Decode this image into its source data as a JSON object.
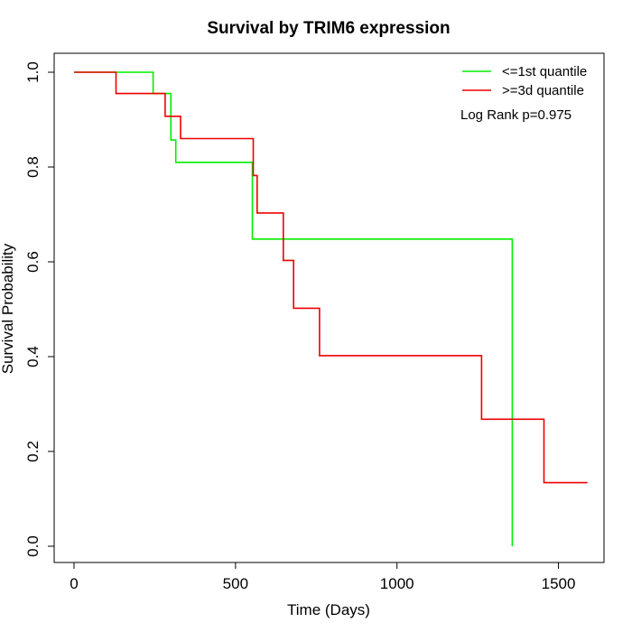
{
  "chart_data": {
    "type": "line",
    "subtype": "kaplan-meier step",
    "title": "Survival by TRIM6 expression",
    "xlabel": "Time (Days)",
    "ylabel": "Survival Probability",
    "xlim": [
      0,
      1650
    ],
    "ylim": [
      0,
      1.0
    ],
    "xticks": [
      0,
      500,
      1000,
      1500
    ],
    "yticks": [
      0.0,
      0.2,
      0.4,
      0.6,
      0.8,
      1.0
    ],
    "xtick_labels": [
      "0",
      "500",
      "1000",
      "1500"
    ],
    "ytick_labels": [
      "0.0",
      "0.2",
      "0.4",
      "0.6",
      "0.8",
      "1.0"
    ],
    "grid": false,
    "legend_position": "top-right",
    "annotation": "Log Rank p=0.975",
    "series": [
      {
        "name": "<=1st quantile",
        "color": "#00ee00",
        "points": [
          [
            0,
            1.0
          ],
          [
            245,
            1.0
          ],
          [
            245,
            0.955
          ],
          [
            300,
            0.955
          ],
          [
            300,
            0.857
          ],
          [
            315,
            0.857
          ],
          [
            315,
            0.81
          ],
          [
            552,
            0.81
          ],
          [
            552,
            0.648
          ],
          [
            1357,
            0.648
          ],
          [
            1357,
            0.0
          ]
        ]
      },
      {
        "name": ">=3d quantile",
        "color": "#ee0000",
        "points": [
          [
            0,
            1.0
          ],
          [
            130,
            1.0
          ],
          [
            130,
            0.955
          ],
          [
            282,
            0.955
          ],
          [
            282,
            0.907
          ],
          [
            330,
            0.907
          ],
          [
            330,
            0.86
          ],
          [
            555,
            0.86
          ],
          [
            555,
            0.782
          ],
          [
            567,
            0.782
          ],
          [
            567,
            0.703
          ],
          [
            648,
            0.703
          ],
          [
            648,
            0.603
          ],
          [
            680,
            0.603
          ],
          [
            680,
            0.502
          ],
          [
            760,
            0.502
          ],
          [
            760,
            0.402
          ],
          [
            1262,
            0.402
          ],
          [
            1262,
            0.268
          ],
          [
            1455,
            0.268
          ],
          [
            1455,
            0.134
          ],
          [
            1590,
            0.134
          ]
        ]
      }
    ]
  }
}
